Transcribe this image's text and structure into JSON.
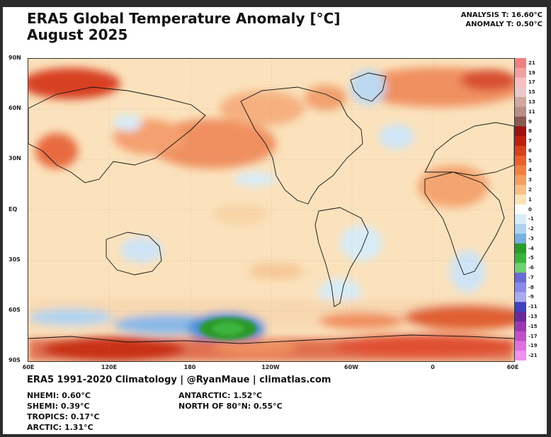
{
  "header": {
    "title": "ERA5 Global Temperature Anomaly [°C]",
    "subtitle": "August 2025",
    "analysis": "ANALYSIS T: 16.60°C",
    "anomaly": "ANOMALY T: 0.50°C"
  },
  "axes": {
    "lat_labels": [
      "90N",
      "60N",
      "30N",
      "EQ",
      "30S",
      "60S",
      "90S"
    ],
    "lon_labels": [
      "60E",
      "120E",
      "180",
      "120W",
      "60W",
      "0",
      "60E"
    ]
  },
  "colorbar": {
    "labels": [
      "21",
      "19",
      "17",
      "15",
      "13",
      "11",
      "9",
      "8",
      "7",
      "6",
      "5",
      "4",
      "3",
      "2",
      "1",
      "0",
      "-1",
      "-2",
      "-3",
      "-4",
      "-5",
      "-6",
      "-7",
      "-8",
      "-9",
      "-11",
      "-13",
      "-15",
      "-17",
      "-19",
      "-21"
    ],
    "colors": [
      "#f08080",
      "#f2a0a0",
      "#f7c0c0",
      "#e8c8c8",
      "#d0a8a0",
      "#b89088",
      "#8a5a50",
      "#a01010",
      "#c02010",
      "#d8401c",
      "#e8602a",
      "#f08040",
      "#f4a060",
      "#f8c088",
      "#fce4b8",
      "#ffffff",
      "#d8ecf8",
      "#b0d4f0",
      "#78b0e0",
      "#2a9a2a",
      "#3cb43c",
      "#70d070",
      "#6a6ad8",
      "#8a8ae8",
      "#aaaaf0",
      "#4040c0",
      "#6a2a9a",
      "#9a3ab0",
      "#c050c8",
      "#e070e0",
      "#f090f0"
    ]
  },
  "footer": {
    "source": "ERA5 1991-2020 Climatology | @RyanMaue | climatlas.com",
    "nhemi": "NHEMI: 0.60°C",
    "shemi": "SHEMI: 0.39°C",
    "tropics": "TROPICS: 0.17°C",
    "arctic": "ARCTIC: 1.31°C",
    "antarctic": "ANTARCTIC: 1.52°C",
    "north80": "NORTH OF 80°N: 0.55°C"
  }
}
